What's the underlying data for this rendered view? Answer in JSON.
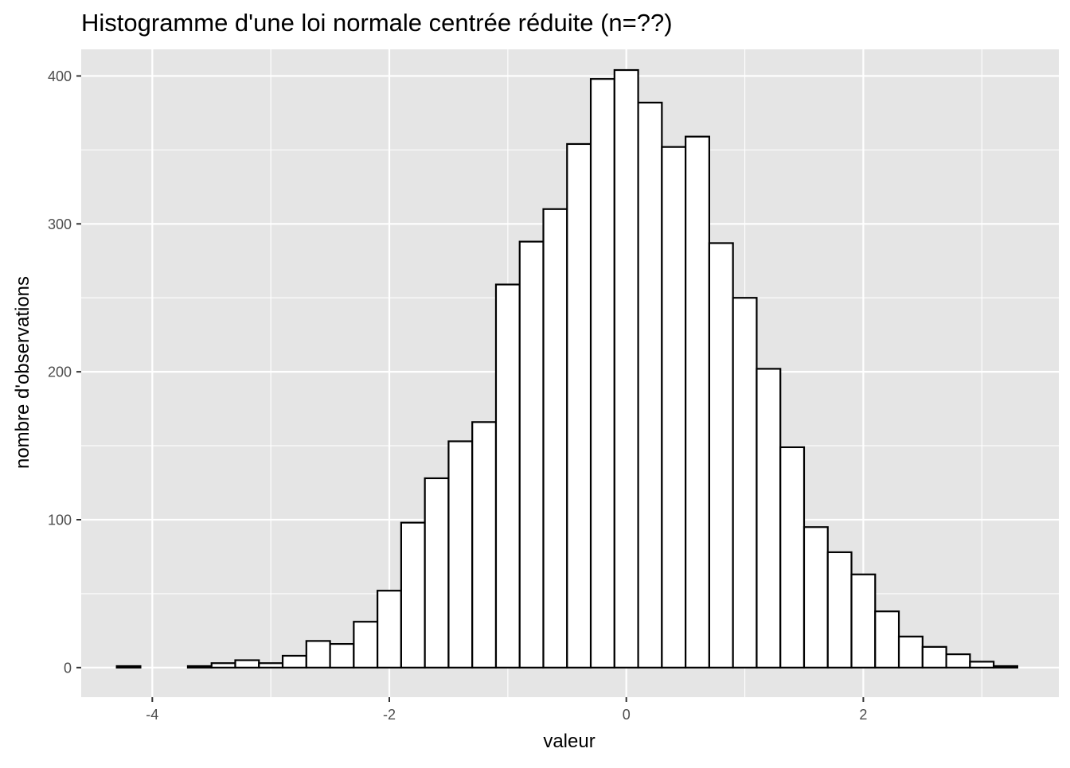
{
  "chart_data": {
    "type": "bar",
    "title": "Histogramme d'une loi normale centrée réduite (n=??)",
    "xlabel": "valeur",
    "ylabel": "nombre d'observations",
    "xlim": [
      -4.6,
      3.65
    ],
    "ylim": [
      -20,
      418
    ],
    "x_ticks": [
      -4,
      -2,
      0,
      2
    ],
    "x_tick_labels": [
      "-4",
      "-2",
      "0",
      "2"
    ],
    "y_ticks": [
      0,
      100,
      200,
      300,
      400
    ],
    "y_tick_labels": [
      "0",
      "100",
      "200",
      "300",
      "400"
    ],
    "grid": true,
    "legend": "none",
    "bin_width": 0.2,
    "bin_centers": [
      -4.2,
      -4.0,
      -3.8,
      -3.6,
      -3.4,
      -3.2,
      -3.0,
      -2.8,
      -2.6,
      -2.4,
      -2.2,
      -2.0,
      -1.8,
      -1.6,
      -1.4,
      -1.2,
      -1.0,
      -0.8,
      -0.6,
      -0.4,
      -0.2,
      0.0,
      0.2,
      0.4,
      0.6,
      0.8,
      1.0,
      1.2,
      1.4,
      1.6,
      1.8,
      2.0,
      2.2,
      2.4,
      2.6,
      2.8,
      3.0,
      3.2
    ],
    "counts": [
      1,
      0,
      0,
      1,
      3,
      5,
      3,
      8,
      18,
      16,
      31,
      52,
      98,
      128,
      153,
      166,
      259,
      288,
      310,
      354,
      398,
      404,
      382,
      352,
      359,
      287,
      250,
      202,
      149,
      95,
      78,
      63,
      38,
      21,
      14,
      9,
      4,
      1
    ],
    "colors": {
      "panel_background": "#e5e5e5",
      "grid": "#ffffff",
      "bar_fill": "#ffffff",
      "bar_outline": "#000000"
    }
  }
}
